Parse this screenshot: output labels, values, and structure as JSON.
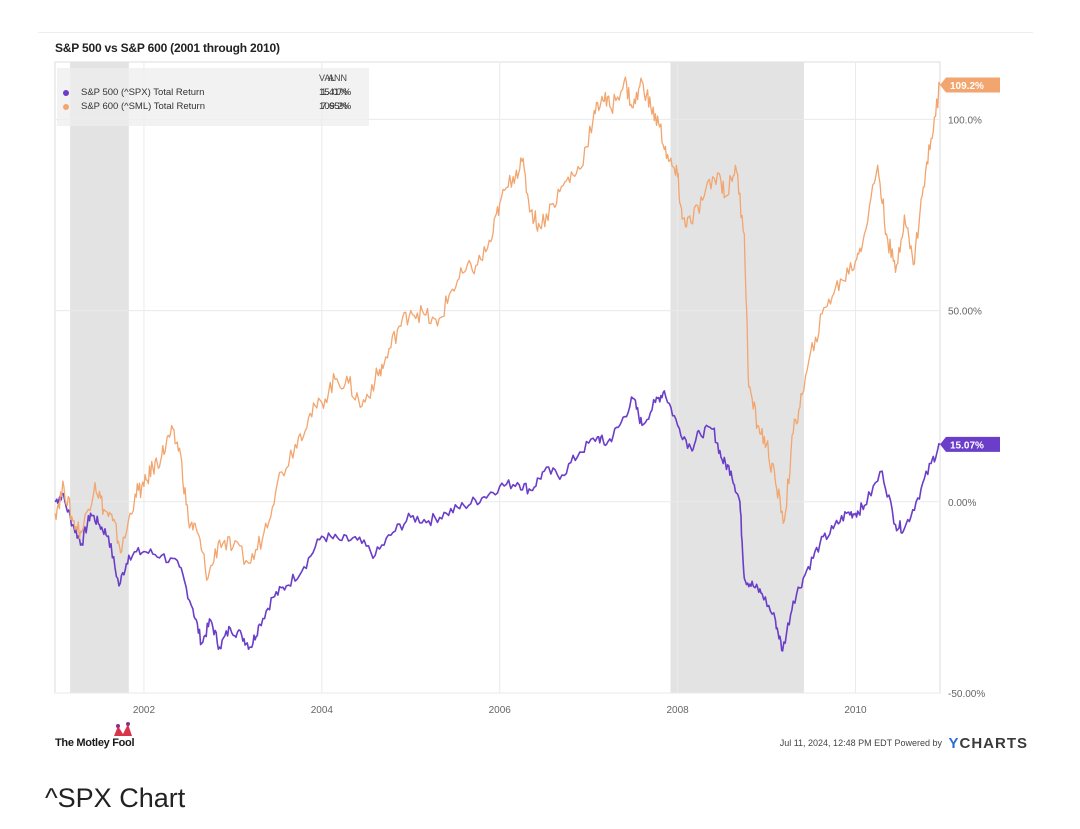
{
  "caption": "^SPX Chart",
  "footer": {
    "left_logo": "The Motley Fool",
    "timestamp": "Jul 11, 2024, 12:48 PM EDT",
    "powered_by": "Powered by",
    "brand_y": "Y",
    "brand_rest": "CHARTS"
  },
  "chart_data": {
    "type": "line",
    "title": "S&P 500 vs S&P 600 (2001 through 2010)",
    "xlabel": "",
    "ylabel": "",
    "xlim": [
      2001.0,
      2010.95
    ],
    "ylim": [
      -50,
      115
    ],
    "x_ticks": [
      "2002",
      "2004",
      "2006",
      "2008",
      "2010"
    ],
    "y_ticks": [
      "100.0%",
      "50.00%",
      "0.00%",
      "-50.00%"
    ],
    "grid": true,
    "legend_position": "top-left",
    "legend_headers": {
      "val": "VAL",
      "ann": "ANN"
    },
    "recession_bands": [
      [
        2001.17,
        2001.83
      ],
      [
        2007.92,
        2009.42
      ]
    ],
    "series": [
      {
        "name": "S&P 500 (^SPX) Total Return",
        "val": "15.07%",
        "ann": "1.41%",
        "end_label": "15.07%",
        "color": "#6a3ec8",
        "points": [
          [
            2001.0,
            0
          ],
          [
            2001.08,
            2
          ],
          [
            2001.2,
            -6
          ],
          [
            2001.3,
            -11
          ],
          [
            2001.4,
            -3
          ],
          [
            2001.5,
            -6
          ],
          [
            2001.6,
            -9
          ],
          [
            2001.72,
            -22
          ],
          [
            2001.83,
            -14
          ],
          [
            2002.0,
            -13
          ],
          [
            2002.2,
            -14
          ],
          [
            2002.4,
            -17
          ],
          [
            2002.55,
            -28
          ],
          [
            2002.65,
            -37
          ],
          [
            2002.75,
            -31
          ],
          [
            2002.85,
            -38
          ],
          [
            2002.97,
            -33
          ],
          [
            2003.1,
            -35
          ],
          [
            2003.2,
            -38
          ],
          [
            2003.3,
            -32
          ],
          [
            2003.45,
            -25
          ],
          [
            2003.6,
            -22
          ],
          [
            2003.8,
            -17
          ],
          [
            2004.0,
            -9
          ],
          [
            2004.2,
            -10
          ],
          [
            2004.4,
            -10
          ],
          [
            2004.6,
            -14
          ],
          [
            2004.8,
            -8
          ],
          [
            2005.0,
            -4
          ],
          [
            2005.2,
            -5
          ],
          [
            2005.4,
            -3
          ],
          [
            2005.6,
            -1
          ],
          [
            2005.8,
            1
          ],
          [
            2006.0,
            4
          ],
          [
            2006.2,
            5
          ],
          [
            2006.35,
            3
          ],
          [
            2006.5,
            8
          ],
          [
            2006.7,
            7
          ],
          [
            2006.9,
            13
          ],
          [
            2007.1,
            17
          ],
          [
            2007.2,
            15
          ],
          [
            2007.35,
            20
          ],
          [
            2007.5,
            27
          ],
          [
            2007.6,
            20
          ],
          [
            2007.75,
            26
          ],
          [
            2007.85,
            29
          ],
          [
            2008.0,
            20
          ],
          [
            2008.15,
            14
          ],
          [
            2008.25,
            18
          ],
          [
            2008.4,
            19
          ],
          [
            2008.5,
            11
          ],
          [
            2008.6,
            8
          ],
          [
            2008.7,
            0
          ],
          [
            2008.75,
            -20
          ],
          [
            2008.85,
            -22
          ],
          [
            2008.95,
            -24
          ],
          [
            2009.1,
            -31
          ],
          [
            2009.18,
            -39
          ],
          [
            2009.3,
            -26
          ],
          [
            2009.45,
            -18
          ],
          [
            2009.6,
            -11
          ],
          [
            2009.75,
            -7
          ],
          [
            2009.9,
            -3
          ],
          [
            2010.0,
            -3
          ],
          [
            2010.1,
            -1
          ],
          [
            2010.3,
            8
          ],
          [
            2010.45,
            -6
          ],
          [
            2010.55,
            -7
          ],
          [
            2010.7,
            1
          ],
          [
            2010.85,
            10
          ],
          [
            2010.95,
            15
          ]
        ]
      },
      {
        "name": "S&P 600 (^SML) Total Return",
        "val": "109.2%",
        "ann": "7.65%",
        "end_label": "109.2%",
        "color": "#f2a56e",
        "points": [
          [
            2001.0,
            -3
          ],
          [
            2001.1,
            4
          ],
          [
            2001.2,
            -5
          ],
          [
            2001.3,
            -8
          ],
          [
            2001.45,
            5
          ],
          [
            2001.55,
            -2
          ],
          [
            2001.65,
            -5
          ],
          [
            2001.75,
            -13
          ],
          [
            2001.9,
            2
          ],
          [
            2002.0,
            4
          ],
          [
            2002.1,
            9
          ],
          [
            2002.2,
            12
          ],
          [
            2002.3,
            18
          ],
          [
            2002.4,
            14
          ],
          [
            2002.5,
            -5
          ],
          [
            2002.6,
            -8
          ],
          [
            2002.72,
            -20
          ],
          [
            2002.85,
            -10
          ],
          [
            2003.0,
            -12
          ],
          [
            2003.2,
            -16
          ],
          [
            2003.35,
            -8
          ],
          [
            2003.5,
            5
          ],
          [
            2003.7,
            15
          ],
          [
            2003.85,
            22
          ],
          [
            2004.0,
            26
          ],
          [
            2004.15,
            32
          ],
          [
            2004.3,
            31
          ],
          [
            2004.45,
            25
          ],
          [
            2004.6,
            32
          ],
          [
            2004.7,
            36
          ],
          [
            2004.85,
            45
          ],
          [
            2005.0,
            50
          ],
          [
            2005.15,
            49
          ],
          [
            2005.3,
            46
          ],
          [
            2005.45,
            55
          ],
          [
            2005.6,
            60
          ],
          [
            2005.75,
            62
          ],
          [
            2005.9,
            68
          ],
          [
            2006.0,
            78
          ],
          [
            2006.15,
            85
          ],
          [
            2006.25,
            89
          ],
          [
            2006.35,
            76
          ],
          [
            2006.45,
            72
          ],
          [
            2006.6,
            78
          ],
          [
            2006.75,
            84
          ],
          [
            2006.9,
            87
          ],
          [
            2007.05,
            100
          ],
          [
            2007.15,
            106
          ],
          [
            2007.25,
            103
          ],
          [
            2007.4,
            110
          ],
          [
            2007.5,
            103
          ],
          [
            2007.6,
            110
          ],
          [
            2007.7,
            103
          ],
          [
            2007.8,
            98
          ],
          [
            2007.9,
            89
          ],
          [
            2008.0,
            85
          ],
          [
            2008.05,
            74
          ],
          [
            2008.15,
            73
          ],
          [
            2008.3,
            80
          ],
          [
            2008.45,
            86
          ],
          [
            2008.55,
            80
          ],
          [
            2008.65,
            88
          ],
          [
            2008.75,
            70
          ],
          [
            2008.8,
            30
          ],
          [
            2008.9,
            20
          ],
          [
            2009.0,
            15
          ],
          [
            2009.1,
            5
          ],
          [
            2009.2,
            -5
          ],
          [
            2009.3,
            18
          ],
          [
            2009.4,
            28
          ],
          [
            2009.55,
            43
          ],
          [
            2009.7,
            53
          ],
          [
            2009.85,
            58
          ],
          [
            2010.0,
            63
          ],
          [
            2010.1,
            70
          ],
          [
            2010.25,
            88
          ],
          [
            2010.35,
            70
          ],
          [
            2010.45,
            60
          ],
          [
            2010.55,
            75
          ],
          [
            2010.65,
            62
          ],
          [
            2010.75,
            80
          ],
          [
            2010.85,
            95
          ],
          [
            2010.95,
            109
          ]
        ]
      }
    ]
  }
}
